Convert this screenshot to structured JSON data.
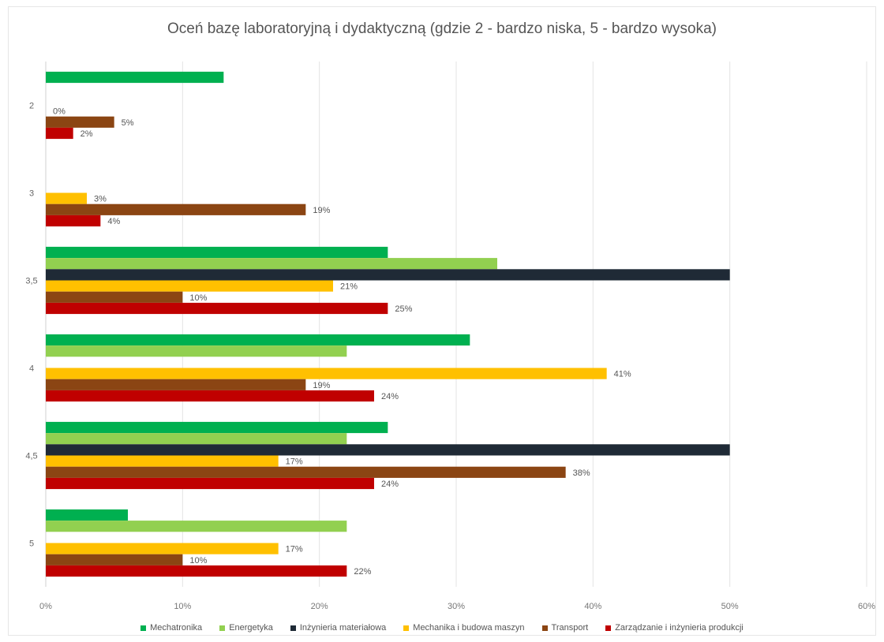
{
  "chart_data": {
    "type": "bar",
    "orientation": "horizontal",
    "title": "Oceń bazę laboratoryjną i dydaktyczną (gdzie 2 - bardzo niska, 5 - bardzo wysoka)",
    "xlabel": "",
    "ylabel": "",
    "xlim": [
      0,
      60
    ],
    "x_ticks": [
      "0%",
      "10%",
      "20%",
      "30%",
      "40%",
      "50%",
      "60%"
    ],
    "grid": true,
    "legend_position": "bottom",
    "categories": [
      "2",
      "3",
      "3,5",
      "4",
      "4,5",
      "5"
    ],
    "series": [
      {
        "name": "Mechatronika",
        "color": "#00b050",
        "values": [
          13,
          null,
          25,
          31,
          25,
          6
        ],
        "labels": [
          null,
          null,
          null,
          null,
          null,
          null
        ]
      },
      {
        "name": "Energetyka",
        "color": "#92d050",
        "values": [
          null,
          null,
          33,
          22,
          22,
          22
        ],
        "labels": [
          null,
          null,
          null,
          null,
          null,
          null
        ]
      },
      {
        "name": "Inżynieria materiałowa",
        "color": "#1f2a36",
        "values": [
          null,
          null,
          50,
          null,
          50,
          null
        ],
        "labels": [
          null,
          null,
          null,
          null,
          null,
          null
        ]
      },
      {
        "name": "Mechanika i budowa maszyn",
        "color": "#ffc000",
        "values": [
          0,
          3,
          21,
          41,
          17,
          17
        ],
        "labels": [
          "0%",
          "3%",
          "21%",
          "41%",
          "17%",
          "17%"
        ]
      },
      {
        "name": "Transport",
        "color": "#8b4513",
        "values": [
          5,
          19,
          10,
          19,
          38,
          10
        ],
        "labels": [
          "5%",
          "19%",
          "10%",
          "19%",
          "38%",
          "10%"
        ]
      },
      {
        "name": "Zarządzanie i inżynieria produkcji",
        "color": "#c00000",
        "values": [
          2,
          4,
          25,
          24,
          24,
          22
        ],
        "labels": [
          "2%",
          "4%",
          "25%",
          "24%",
          "24%",
          "22%"
        ]
      }
    ]
  }
}
